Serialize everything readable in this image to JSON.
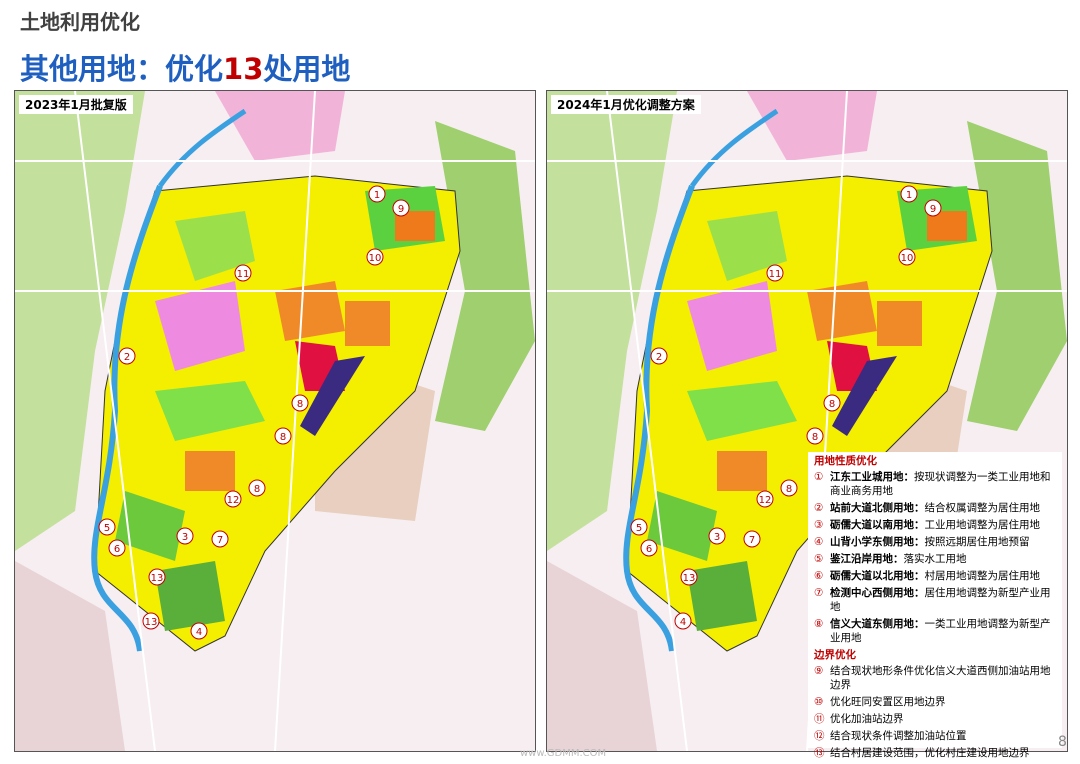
{
  "header": {
    "section": "土地利用优化",
    "title_parts": [
      "其他用地：优化",
      "13",
      "处用地"
    ]
  },
  "maps": [
    {
      "label": "2023年1月批复版",
      "markers": [
        "1",
        "9",
        "10",
        "11",
        "2",
        "8",
        "8",
        "8",
        "12",
        "5",
        "6",
        "3",
        "7",
        "13",
        "13",
        "4"
      ]
    },
    {
      "label": "2024年1月优化调整方案",
      "markers": [
        "1",
        "9",
        "10",
        "11",
        "2",
        "8",
        "8",
        "8",
        "12",
        "5",
        "6",
        "3",
        "7",
        "13",
        "4"
      ]
    }
  ],
  "legend": {
    "groups": [
      {
        "title": "用地性质优化",
        "items": [
          {
            "num": "①",
            "name": "江东工业城用地：",
            "text": "按现状调整为一类工业用地和商业商务用地"
          },
          {
            "num": "②",
            "name": "站前大道北侧用地：",
            "text": "结合权属调整为居住用地"
          },
          {
            "num": "③",
            "name": "砺儒大道以南用地：",
            "text": "工业用地调整为居住用地"
          },
          {
            "num": "④",
            "name": "山背小学东侧用地：",
            "text": "按照远期居住用地预留"
          },
          {
            "num": "⑤",
            "name": "鉴江沿岸用地：",
            "text": "落实水工用地"
          },
          {
            "num": "⑥",
            "name": "砺儒大道以北用地：",
            "text": "村居用地调整为居住用地"
          },
          {
            "num": "⑦",
            "name": "检测中心西侧用地：",
            "text": "居住用地调整为新型产业用地"
          },
          {
            "num": "⑧",
            "name": "信义大道东侧用地：",
            "text": "一类工业用地调整为新型产业用地"
          }
        ]
      },
      {
        "title": "边界优化",
        "items": [
          {
            "num": "⑨",
            "text": "结合现状地形条件优化信义大道西侧加油站用地边界"
          },
          {
            "num": "⑩",
            "text": "优化旺同安置区用地边界"
          },
          {
            "num": "⑪",
            "text": "优化加油站边界"
          },
          {
            "num": "⑫",
            "text": "结合现状条件调整加油站位置"
          },
          {
            "num": "⑬",
            "text": "结合村居建设范围，优化村庄建设用地边界"
          }
        ]
      }
    ]
  },
  "footer": {
    "watermark": "www.GDMM.COM",
    "page_number": "8"
  }
}
